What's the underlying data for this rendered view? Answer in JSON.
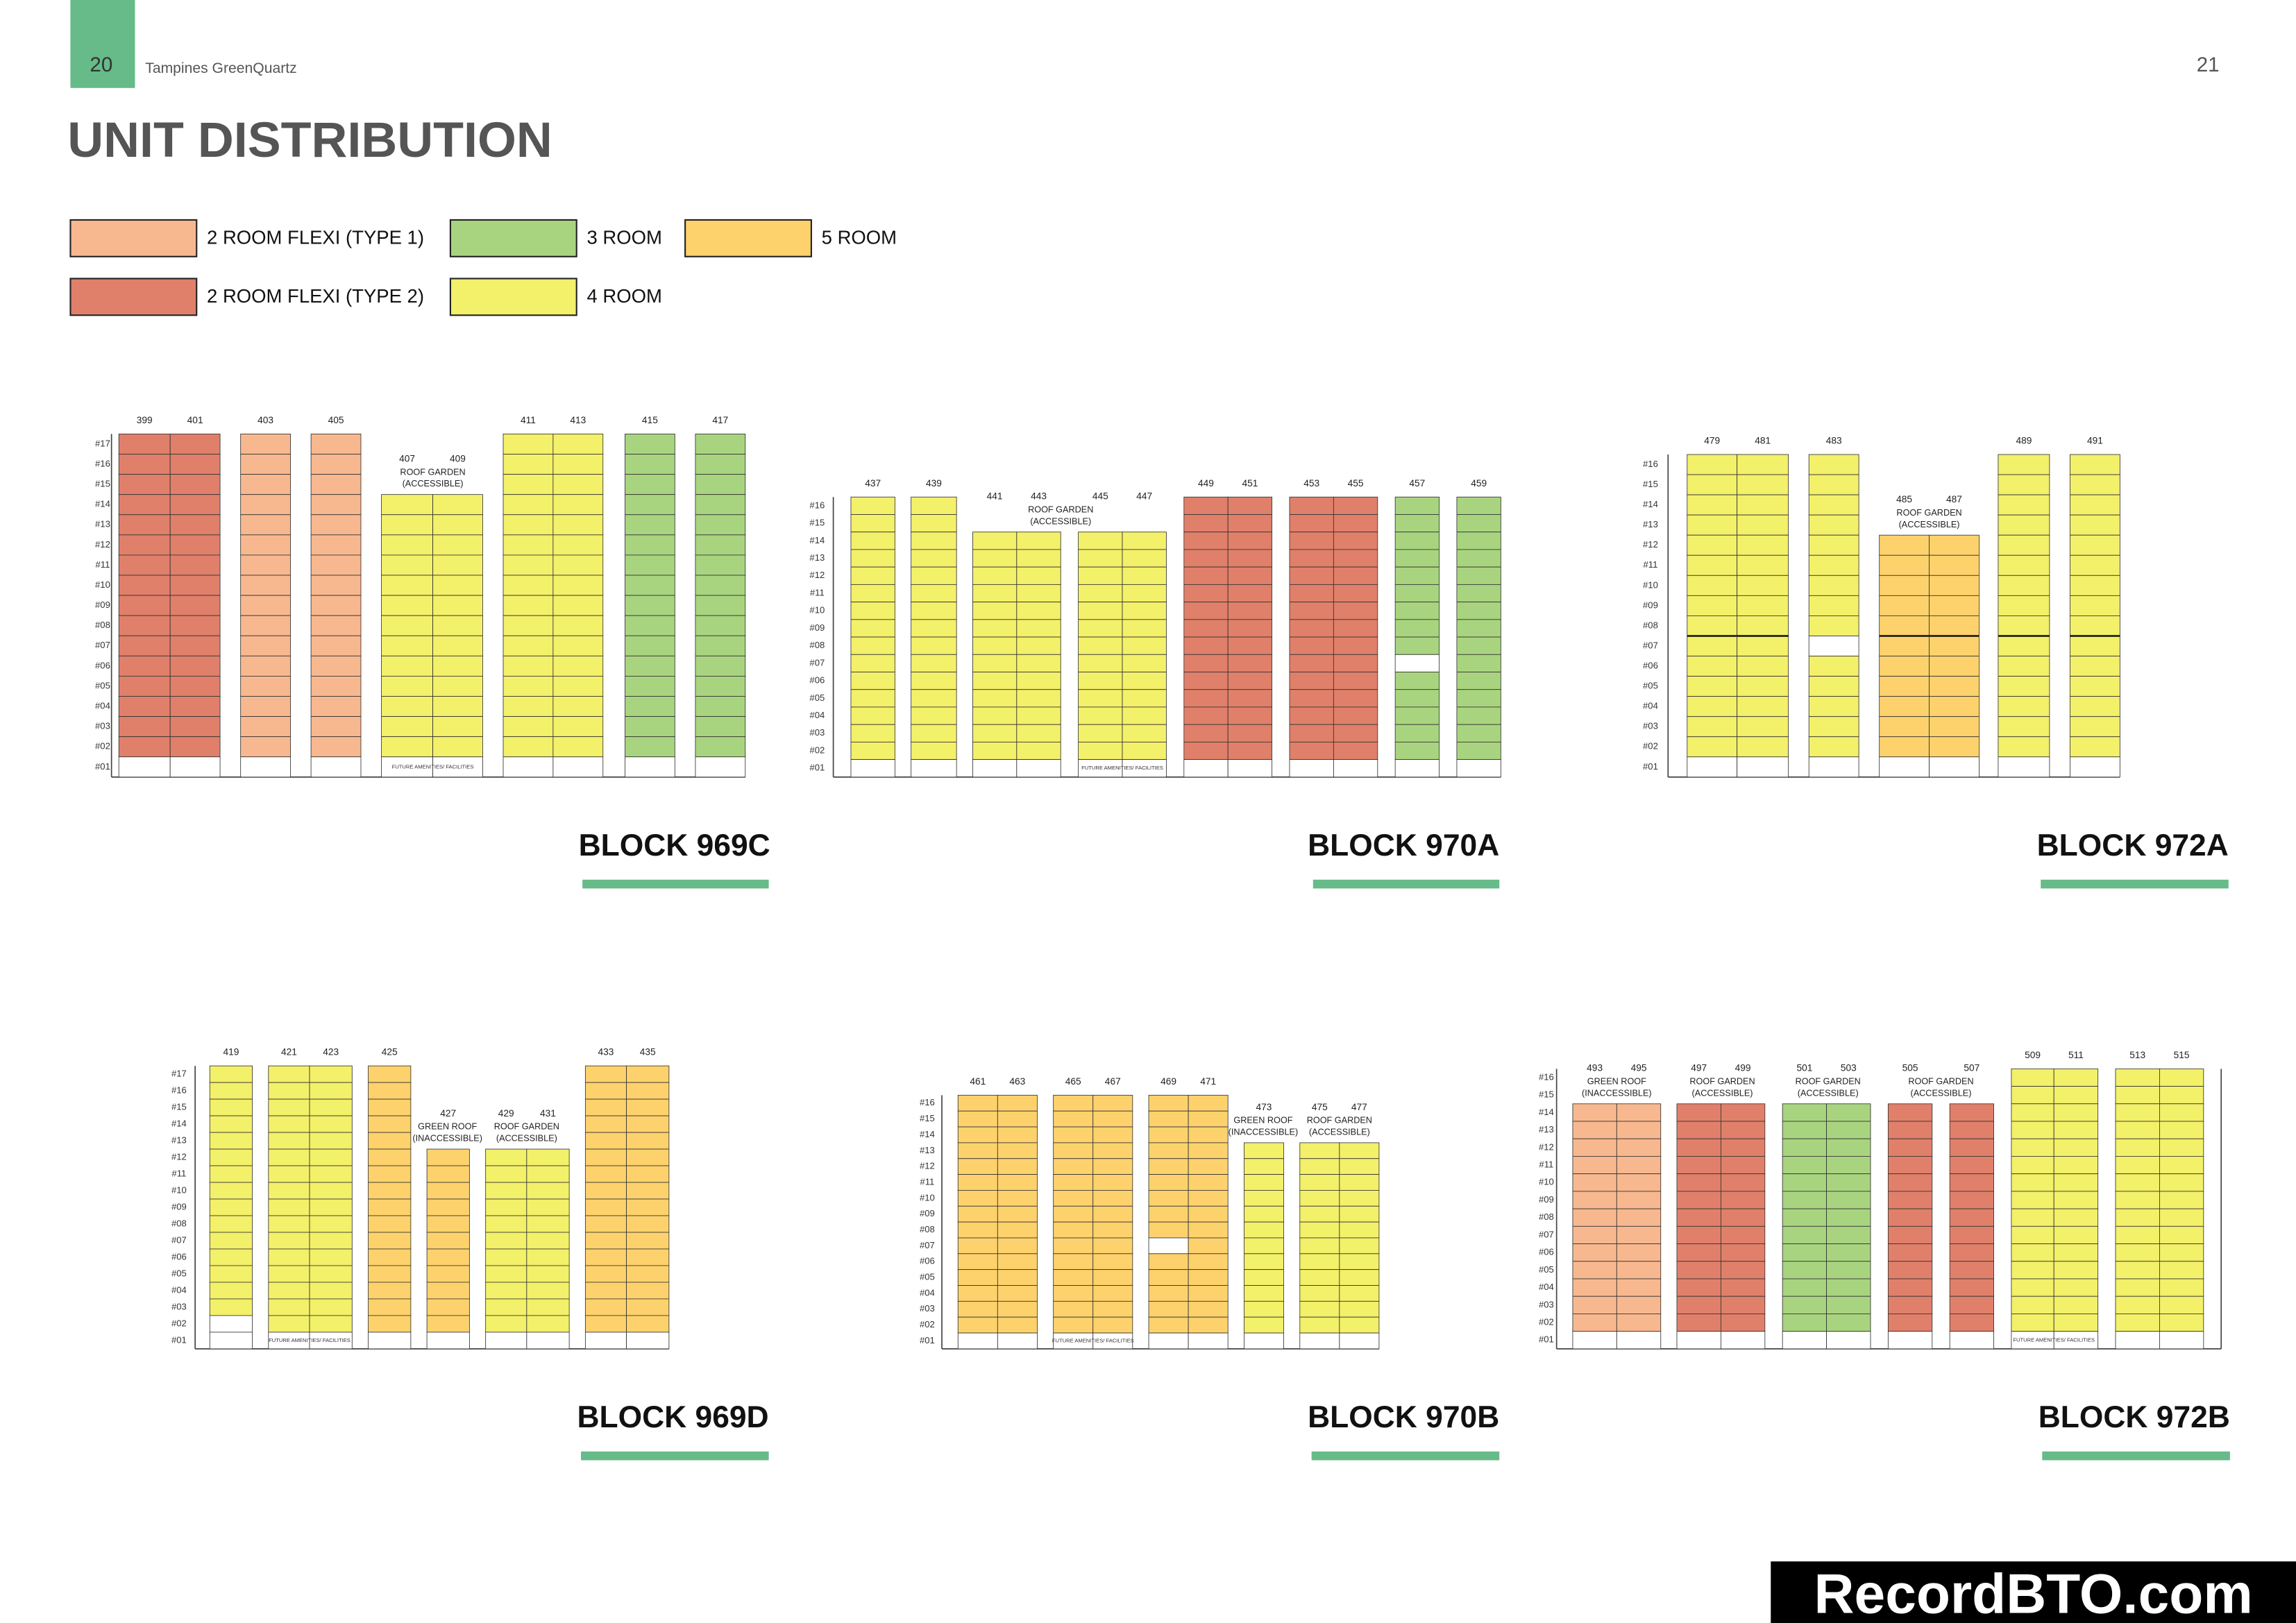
{
  "header": {
    "left_page": "20",
    "publication": "Tampines GreenQuartz",
    "right_page": "21"
  },
  "title": "UNIT DISTRIBUTION",
  "legend": [
    {
      "label": "2  ROOM FLEXI (TYPE 1)",
      "color": "#f8b88f"
    },
    {
      "label": "3 ROOM",
      "color": "#a9d47f"
    },
    {
      "label": "5 ROOM",
      "color": "#fdd26c"
    },
    {
      "label": "2  ROOM FLEXI (TYPE 2)",
      "color": "#e0806a"
    },
    {
      "label": "4 ROOM",
      "color": "#f3f06a"
    }
  ],
  "blocks": [
    {
      "name": "BLOCK 969C",
      "floors": [
        "#17",
        "#16",
        "#15",
        "#14",
        "#13",
        "#12",
        "#11",
        "#10",
        "#09",
        "#08",
        "#07",
        "#06",
        "#05",
        "#04",
        "#03",
        "#02",
        "#01"
      ],
      "units": [
        "399",
        "401",
        "403",
        "405",
        "407",
        "409",
        "411",
        "413",
        "415",
        "417"
      ],
      "notes": [
        [
          "ROOF GARDEN",
          "(ACCESSIBLE)"
        ]
      ],
      "ground_note": "FUTURE AMENITIES/ FACILITIES"
    },
    {
      "name": "BLOCK 970A",
      "floors": [
        "#16",
        "#15",
        "#14",
        "#13",
        "#12",
        "#11",
        "#10",
        "#09",
        "#08",
        "#07",
        "#06",
        "#05",
        "#04",
        "#03",
        "#02",
        "#01"
      ],
      "units": [
        "437",
        "439",
        "441",
        "443",
        "445",
        "447",
        "449",
        "451",
        "453",
        "455",
        "457",
        "459"
      ],
      "notes": [
        [
          "ROOF GARDEN",
          "(ACCESSIBLE)"
        ]
      ],
      "ground_note": "FUTURE AMENITIES/ FACILITIES"
    },
    {
      "name": "BLOCK 972A",
      "floors": [
        "#16",
        "#15",
        "#14",
        "#13",
        "#12",
        "#11",
        "#10",
        "#09",
        "#08",
        "#07",
        "#06",
        "#05",
        "#04",
        "#03",
        "#02",
        "#01"
      ],
      "units": [
        "479",
        "481",
        "483",
        "485",
        "487",
        "489",
        "491"
      ],
      "notes": [
        [
          "ROOF GARDEN",
          "(ACCESSIBLE)"
        ]
      ]
    },
    {
      "name": "BLOCK 969D",
      "floors": [
        "#17",
        "#16",
        "#15",
        "#14",
        "#13",
        "#12",
        "#11",
        "#10",
        "#09",
        "#08",
        "#07",
        "#06",
        "#05",
        "#04",
        "#03",
        "#02",
        "#01"
      ],
      "units": [
        "419",
        "421",
        "423",
        "425",
        "427",
        "429",
        "431",
        "433",
        "435"
      ],
      "notes": [
        [
          "GREEN ROOF",
          "(INACCESSIBLE)"
        ],
        [
          "ROOF GARDEN",
          "(ACCESSIBLE)"
        ]
      ],
      "ground_note": "FUTURE AMENITIES/ FACILITIES"
    },
    {
      "name": "BLOCK 970B",
      "floors": [
        "#16",
        "#15",
        "#14",
        "#13",
        "#12",
        "#11",
        "#10",
        "#09",
        "#08",
        "#07",
        "#06",
        "#05",
        "#04",
        "#03",
        "#02",
        "#01"
      ],
      "units": [
        "461",
        "463",
        "465",
        "467",
        "469",
        "471",
        "473",
        "475",
        "477"
      ],
      "notes": [
        [
          "GREEN ROOF",
          "(INACCESSIBLE)"
        ],
        [
          "ROOF GARDEN",
          "(ACCESSIBLE)"
        ]
      ],
      "ground_note": "FUTURE AMENITIES/ FACILITIES"
    },
    {
      "name": "BLOCK 972B",
      "floors": [
        "#16",
        "#15",
        "#14",
        "#13",
        "#12",
        "#11",
        "#10",
        "#09",
        "#08",
        "#07",
        "#06",
        "#05",
        "#04",
        "#03",
        "#02",
        "#01"
      ],
      "units": [
        "493",
        "495",
        "497",
        "499",
        "501",
        "503",
        "505",
        "507",
        "509",
        "511",
        "513",
        "515"
      ],
      "notes": [
        [
          "GREEN ROOF",
          "(INACCESSIBLE)"
        ],
        [
          "ROOF GARDEN",
          "(ACCESSIBLE)"
        ],
        [
          "ROOF GARDEN",
          "(ACCESSIBLE)"
        ],
        [
          "ROOF GARDEN",
          "(ACCESSIBLE)"
        ]
      ],
      "ground_note": "FUTURE AMENITIES/ FACILITIES"
    }
  ],
  "watermark": "RecordBTO.com"
}
